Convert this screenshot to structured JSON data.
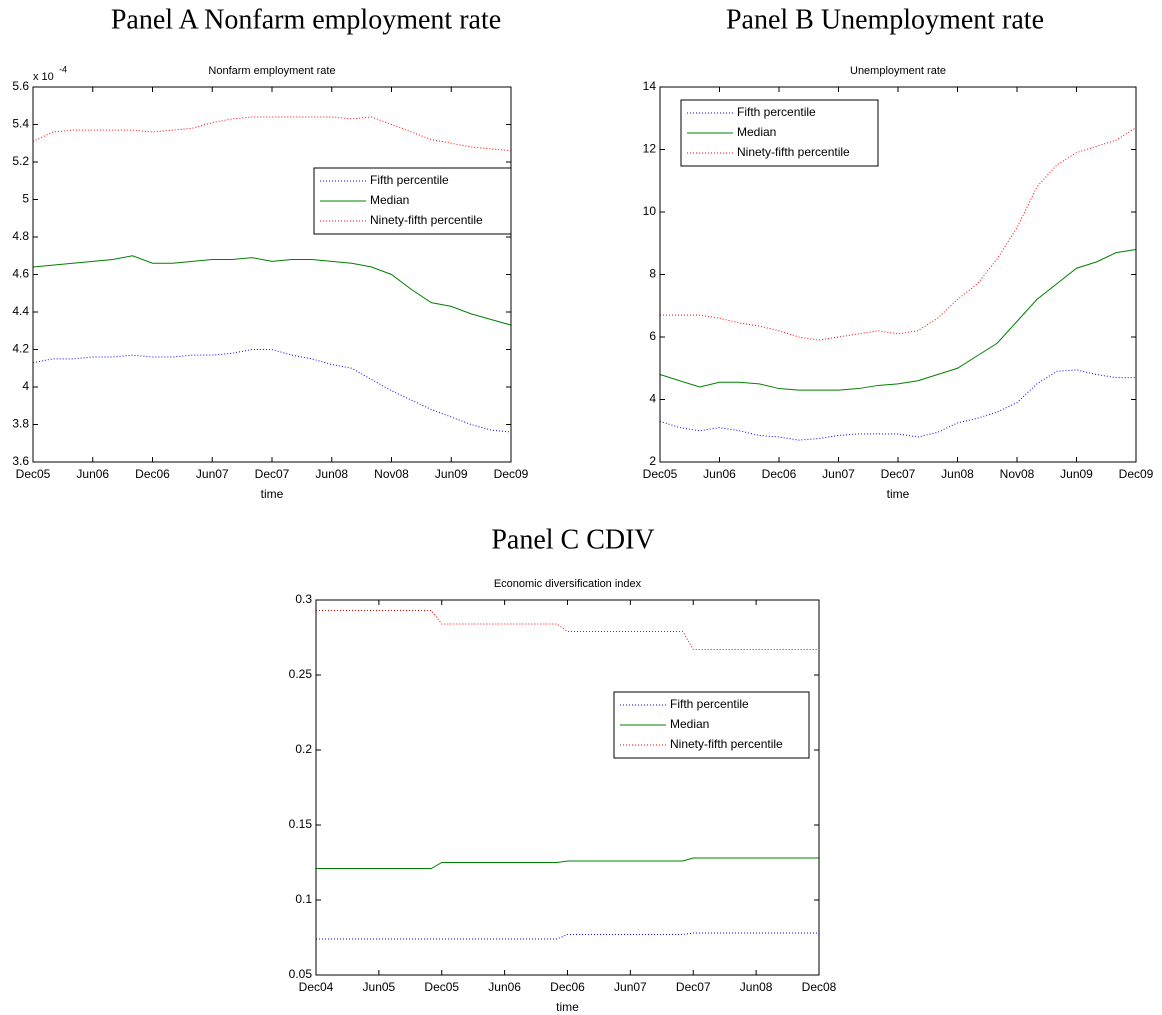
{
  "chart_data": [
    {
      "type": "line",
      "panel_title": "Panel A Nonfarm employment rate",
      "title": "Nonfarm employment rate",
      "xlabel": "time",
      "y_multiplier": {
        "base": "x 10",
        "exponent": "-4"
      },
      "x": [
        0,
        2,
        4,
        6,
        8,
        10,
        12,
        14,
        16,
        18,
        20,
        22,
        24,
        26,
        28,
        30,
        32,
        34,
        36,
        38,
        40,
        42,
        44,
        46,
        48
      ],
      "xlim": [
        0,
        48
      ],
      "xticks": [
        {
          "value": 0,
          "label": "Dec05"
        },
        {
          "value": 6,
          "label": "Jun06"
        },
        {
          "value": 12,
          "label": "Dec06"
        },
        {
          "value": 18,
          "label": "Jun07"
        },
        {
          "value": 24,
          "label": "Dec07"
        },
        {
          "value": 30,
          "label": "Jun08"
        },
        {
          "value": 36,
          "label": "Nov08"
        },
        {
          "value": 42,
          "label": "Jun09"
        },
        {
          "value": 48,
          "label": "Dec09"
        }
      ],
      "ylim": [
        3.6,
        5.6
      ],
      "yticks": [
        3.6,
        3.8,
        4,
        4.2,
        4.4,
        4.6,
        4.8,
        5,
        5.2,
        5.4,
        5.6
      ],
      "legend": "upper right",
      "series": [
        {
          "name": "Fifth percentile",
          "color": "#0000ff",
          "linestyle": "dotted",
          "values": [
            4.13,
            4.15,
            4.15,
            4.16,
            4.16,
            4.17,
            4.16,
            4.16,
            4.17,
            4.17,
            4.18,
            4.2,
            4.2,
            4.17,
            4.15,
            4.12,
            4.1,
            4.04,
            3.98,
            3.93,
            3.88,
            3.84,
            3.8,
            3.77,
            3.76
          ]
        },
        {
          "name": "Median",
          "color": "#008000",
          "linestyle": "solid",
          "values": [
            4.64,
            4.65,
            4.66,
            4.67,
            4.68,
            4.7,
            4.66,
            4.66,
            4.67,
            4.68,
            4.68,
            4.69,
            4.67,
            4.68,
            4.68,
            4.67,
            4.66,
            4.64,
            4.6,
            4.52,
            4.45,
            4.43,
            4.39,
            4.36,
            4.33
          ]
        },
        {
          "name": "Ninety-fifth percentile",
          "color": "#ff0000",
          "linestyle": "dotted",
          "values": [
            5.31,
            5.36,
            5.37,
            5.37,
            5.37,
            5.37,
            5.36,
            5.37,
            5.38,
            5.41,
            5.43,
            5.44,
            5.44,
            5.44,
            5.44,
            5.44,
            5.43,
            5.44,
            5.4,
            5.36,
            5.32,
            5.3,
            5.28,
            5.27,
            5.26
          ]
        }
      ]
    },
    {
      "type": "line",
      "panel_title": "Panel B Unemployment rate",
      "title": "Unemployment rate",
      "xlabel": "time",
      "x": [
        0,
        2,
        4,
        6,
        8,
        10,
        12,
        14,
        16,
        18,
        20,
        22,
        24,
        26,
        28,
        30,
        32,
        34,
        36,
        38,
        40,
        42,
        44,
        46,
        48
      ],
      "xlim": [
        0,
        48
      ],
      "xticks": [
        {
          "value": 0,
          "label": "Dec05"
        },
        {
          "value": 6,
          "label": "Jun06"
        },
        {
          "value": 12,
          "label": "Dec06"
        },
        {
          "value": 18,
          "label": "Jun07"
        },
        {
          "value": 24,
          "label": "Dec07"
        },
        {
          "value": 30,
          "label": "Jun08"
        },
        {
          "value": 36,
          "label": "Nov08"
        },
        {
          "value": 42,
          "label": "Jun09"
        },
        {
          "value": 48,
          "label": "Dec09"
        }
      ],
      "ylim": [
        2,
        14
      ],
      "yticks": [
        2,
        4,
        6,
        8,
        10,
        12,
        14
      ],
      "legend": "upper left",
      "series": [
        {
          "name": "Fifth percentile",
          "color": "#0000ff",
          "linestyle": "dotted",
          "values": [
            3.3,
            3.1,
            3.0,
            3.1,
            3.0,
            2.85,
            2.8,
            2.7,
            2.75,
            2.85,
            2.9,
            2.9,
            2.9,
            2.8,
            2.95,
            3.25,
            3.4,
            3.6,
            3.9,
            4.5,
            4.9,
            4.95,
            4.8,
            4.7,
            4.7
          ]
        },
        {
          "name": "Median",
          "color": "#008000",
          "linestyle": "solid",
          "values": [
            4.8,
            4.6,
            4.4,
            4.55,
            4.55,
            4.5,
            4.35,
            4.3,
            4.3,
            4.3,
            4.35,
            4.45,
            4.5,
            4.6,
            4.8,
            5.0,
            5.4,
            5.8,
            6.5,
            7.2,
            7.7,
            8.2,
            8.4,
            8.7,
            8.8
          ]
        },
        {
          "name": "Ninety-fifth percentile",
          "color": "#ff0000",
          "linestyle": "dotted",
          "values": [
            6.7,
            6.7,
            6.7,
            6.6,
            6.45,
            6.35,
            6.2,
            6.0,
            5.9,
            6.0,
            6.1,
            6.2,
            6.1,
            6.2,
            6.6,
            7.2,
            7.7,
            8.5,
            9.5,
            10.8,
            11.5,
            11.9,
            12.1,
            12.3,
            12.7
          ]
        }
      ]
    },
    {
      "type": "line",
      "panel_title": "Panel C CDIV",
      "title": "Economic diversification index",
      "xlabel": "time",
      "x": [
        0,
        11,
        12,
        23,
        24,
        35,
        36,
        48
      ],
      "xlim": [
        0,
        48
      ],
      "xticks": [
        {
          "value": 0,
          "label": "Dec04"
        },
        {
          "value": 6,
          "label": "Jun05"
        },
        {
          "value": 12,
          "label": "Dec05"
        },
        {
          "value": 18,
          "label": "Jun06"
        },
        {
          "value": 24,
          "label": "Dec06"
        },
        {
          "value": 30,
          "label": "Jun07"
        },
        {
          "value": 36,
          "label": "Dec07"
        },
        {
          "value": 42,
          "label": "Jun08"
        },
        {
          "value": 48,
          "label": "Dec08"
        }
      ],
      "ylim": [
        0.05,
        0.3
      ],
      "yticks": [
        0.05,
        0.1,
        0.15,
        0.2,
        0.25,
        0.3
      ],
      "legend": "upper right",
      "series": [
        {
          "name": "Fifth percentile",
          "color": "#0000ff",
          "linestyle": "dotted",
          "values": [
            0.074,
            0.074,
            0.074,
            0.074,
            0.077,
            0.077,
            0.078,
            0.078
          ]
        },
        {
          "name": "Median",
          "color": "#008000",
          "linestyle": "solid",
          "values": [
            0.121,
            0.121,
            0.125,
            0.125,
            0.126,
            0.126,
            0.128,
            0.128
          ]
        },
        {
          "name": "Ninety-fifth percentile",
          "color": "#ff0000",
          "linestyle": "dotted",
          "values": [
            0.293,
            0.293,
            0.284,
            0.284,
            0.279,
            0.279,
            0.267,
            0.267
          ]
        }
      ]
    }
  ]
}
